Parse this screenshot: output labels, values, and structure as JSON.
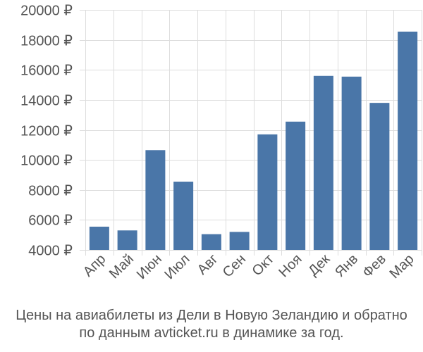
{
  "chart_data": {
    "type": "bar",
    "categories": [
      "Апр",
      "Май",
      "Июн",
      "Июл",
      "Авг",
      "Сен",
      "Окт",
      "Ноя",
      "Дек",
      "Янв",
      "Фев",
      "Мар"
    ],
    "values": [
      5550,
      5300,
      10650,
      8550,
      5050,
      5200,
      11700,
      12550,
      15600,
      15550,
      13800,
      18550
    ],
    "yticks": [
      "4000 ₽",
      "6000 ₽",
      "8000 ₽",
      "10000 ₽",
      "12000 ₽",
      "14000 ₽",
      "16000 ₽",
      "18000 ₽",
      "20000 ₽"
    ],
    "ytick_values": [
      4000,
      6000,
      8000,
      10000,
      12000,
      14000,
      16000,
      18000,
      20000
    ],
    "ylim": [
      4000,
      20000
    ],
    "grid": true,
    "bar_color": "#4a76a8",
    "grid_color": "#dddddd",
    "caption": {
      "line1": "Цены на авиабилеты из Дели в Новую Зеландию и обратно",
      "line2": "по данным avticket.ru в динамике за год."
    }
  }
}
